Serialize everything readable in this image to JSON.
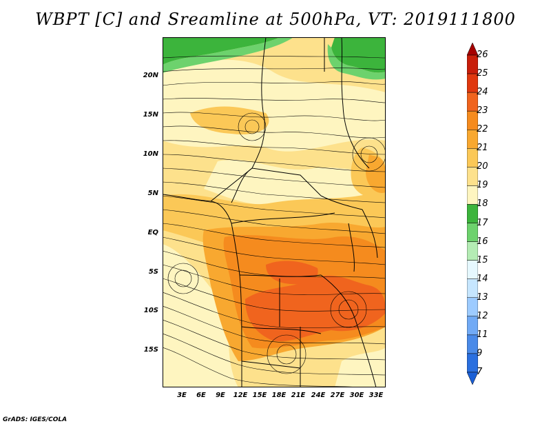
{
  "title": "WBPT [C] and Sreamline at 500hPa, VT: 2019111800",
  "footer": "GrADS: IGES/COLA",
  "y_axis_labels": [
    "20N",
    "15N",
    "10N",
    "5N",
    "EQ",
    "5S",
    "10S",
    "15S"
  ],
  "x_axis_labels": [
    "3E",
    "6E",
    "9E",
    "12E",
    "15E",
    "18E",
    "21E",
    "24E",
    "27E",
    "30E",
    "33E"
  ],
  "colorbar": {
    "labels": [
      "26",
      "25",
      "24",
      "23",
      "22",
      "21",
      "20",
      "19",
      "18",
      "17",
      "16",
      "15",
      "14",
      "13",
      "12",
      "11",
      "9",
      "7"
    ],
    "colors": [
      "#a50000",
      "#c81e0a",
      "#e0380f",
      "#f0641e",
      "#f58b1e",
      "#f8a830",
      "#fbc857",
      "#fde18c",
      "#fef5c0",
      "#3cb43c",
      "#6dd26d",
      "#b4ecb4",
      "#e6f8ff",
      "#c6e6ff",
      "#9dcbff",
      "#71aaf5",
      "#4a8ae8",
      "#2a6fdf",
      "#1a5fd6"
    ]
  },
  "colors": {
    "green": "#3cb43c",
    "light_green": "#6dd26d",
    "pale_yellow": "#fef5c0",
    "light_yellow": "#fde18c",
    "yellow_orange": "#fbc857",
    "orange": "#f8a830",
    "dark_orange": "#f58b1e",
    "red_orange": "#f0641e"
  }
}
